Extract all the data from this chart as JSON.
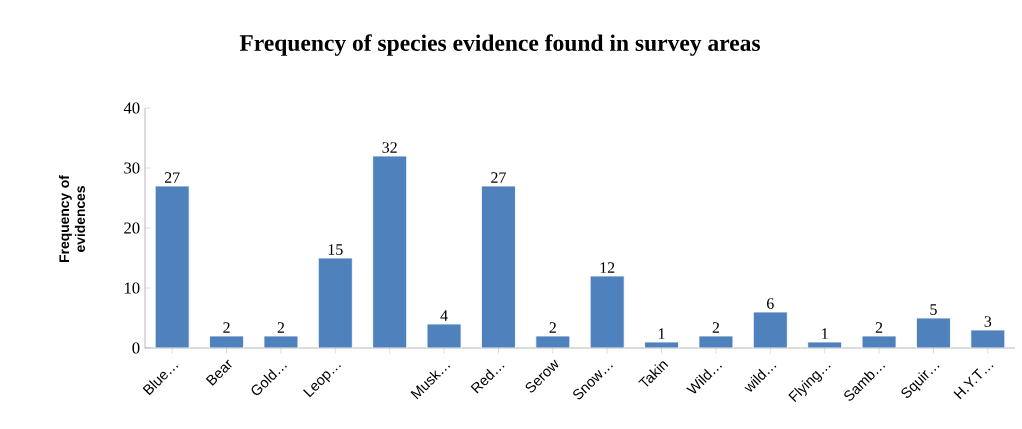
{
  "chart_data": {
    "type": "bar",
    "title": "Frequency of species evidence found in survey areas",
    "ylabel": "Frequency of evidences",
    "categories": [
      "Blue…",
      "Bear",
      "Gold…",
      "Leop…",
      null,
      "Musk…",
      "Red…",
      "Serow",
      "Snow…",
      "Takin",
      "Wild…",
      "wild…",
      "Flying…",
      "Samb…",
      "Squir…",
      "H.Y.T…"
    ],
    "values": [
      27,
      2,
      2,
      15,
      32,
      4,
      27,
      2,
      12,
      1,
      2,
      6,
      1,
      2,
      5,
      3
    ],
    "color": "#4f81bd",
    "ylim": [
      0,
      40
    ],
    "yticks": [
      0,
      10,
      20,
      30,
      40
    ],
    "data_labels": true
  }
}
